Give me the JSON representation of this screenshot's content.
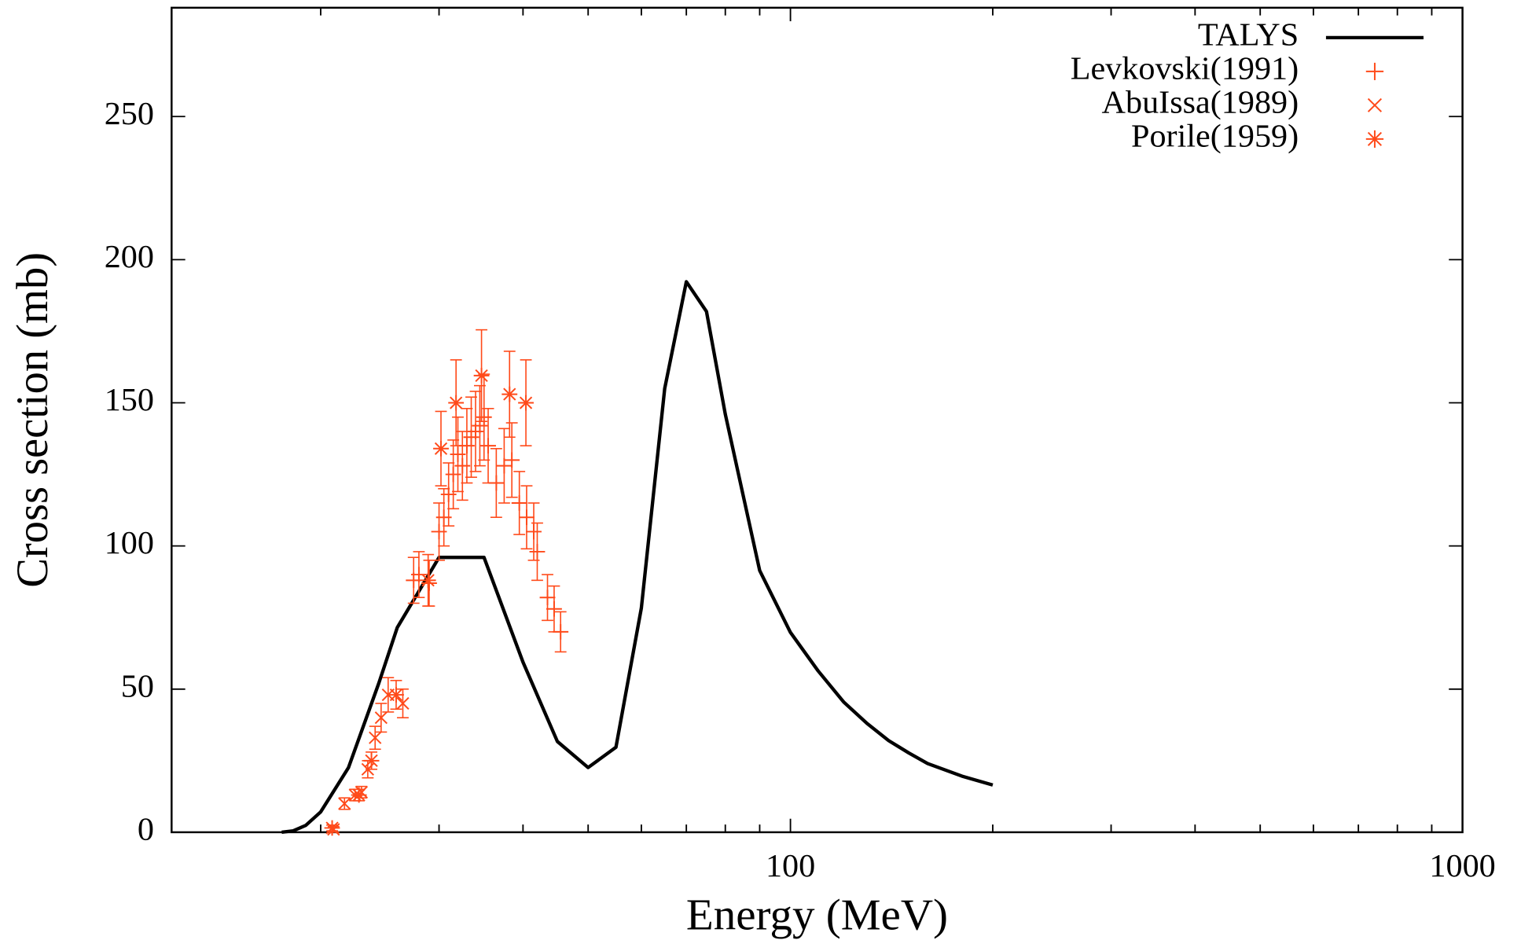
{
  "chart_data": {
    "type": "line",
    "xlabel": "Energy (MeV)",
    "ylabel": "Cross section (mb)",
    "xscale": "log",
    "xlim": [
      12,
      1000
    ],
    "ylim": [
      0,
      288
    ],
    "xticks": [
      100,
      1000
    ],
    "xminorticks": [
      20,
      30,
      40,
      50,
      60,
      70,
      80,
      90,
      200,
      300,
      400,
      500,
      600,
      700,
      800,
      900
    ],
    "yticks": [
      0,
      50,
      100,
      150,
      200,
      250
    ],
    "legend": "upper right",
    "series": [
      {
        "name": "TALYS",
        "color": "#000000",
        "style": "line",
        "x": [
          17.5,
          18.2,
          19,
          20,
          22,
          24.4,
          26,
          30,
          35,
          40,
          45,
          50,
          55,
          60,
          65,
          70,
          75,
          80,
          90,
          100,
          110,
          120,
          130,
          140,
          150,
          160,
          180,
          200
        ],
        "values": [
          0,
          0.5,
          2.4,
          7.1,
          22.6,
          52,
          71.5,
          96,
          96,
          59.4,
          31.7,
          22.6,
          29.7,
          78.3,
          155,
          192.3,
          181.9,
          146,
          91.4,
          69.8,
          56.3,
          45.5,
          38,
          32,
          27.7,
          24,
          19.6,
          16.5
        ]
      },
      {
        "name": "Levkovski(1991)",
        "color": "#ff4a1a",
        "style": "plus",
        "x": [
          27.5,
          28,
          29,
          30,
          30.5,
          31,
          31.5,
          32,
          32.5,
          33,
          33.5,
          34,
          34.5,
          35,
          35.5,
          36.5,
          37.5,
          38.5,
          39.5,
          40.5,
          41.5,
          42,
          43.5,
          44.5,
          45.5
        ],
        "values": [
          88,
          90,
          87,
          105,
          110,
          118,
          125,
          132,
          128,
          135,
          138,
          140,
          142,
          145,
          135,
          122,
          128,
          130,
          115,
          110,
          105,
          98,
          82,
          78,
          70
        ],
        "errors": [
          8,
          8,
          8,
          10,
          10,
          11,
          12,
          13,
          12,
          13,
          14,
          14,
          14,
          15,
          13,
          12,
          13,
          13,
          11,
          11,
          10,
          10,
          8,
          8,
          7
        ]
      },
      {
        "name": "AbuIssa(1989)",
        "color": "#ff4a1a",
        "style": "cross",
        "x": [
          20.9,
          21.7,
          22.5,
          23,
          23.5,
          24.1,
          24.6,
          25.2,
          26.5
        ],
        "values": [
          1,
          10,
          13,
          14,
          22,
          33,
          40,
          48,
          45
        ],
        "errors": [
          1,
          2,
          2,
          2,
          3,
          4,
          5,
          6,
          5
        ]
      },
      {
        "name": "Porile(1959)",
        "color": "#ff4a1a",
        "style": "star",
        "x": [
          20.8,
          22.8,
          23.8,
          25.9,
          28.9,
          30.2,
          31.8,
          34.7,
          38.2,
          40.4
        ],
        "values": [
          1.5,
          13,
          25,
          48,
          88,
          134,
          150,
          159.5,
          153,
          150
        ],
        "errors": [
          1,
          2,
          3,
          5,
          9,
          13,
          15,
          16,
          15,
          15
        ]
      }
    ]
  }
}
